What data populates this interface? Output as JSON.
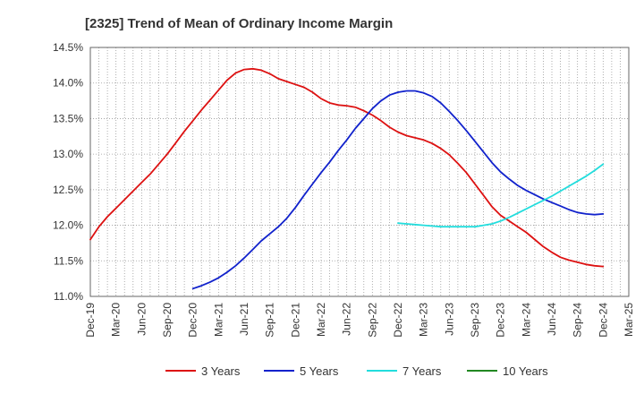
{
  "chart_data": {
    "type": "line",
    "title": "[2325]  Trend of Mean of Ordinary Income Margin",
    "xlabel": "",
    "ylabel": "",
    "x_ticks": [
      "Dec-19",
      "Mar-20",
      "Jun-20",
      "Sep-20",
      "Dec-20",
      "Mar-21",
      "Jun-21",
      "Sep-21",
      "Dec-21",
      "Mar-22",
      "Jun-22",
      "Sep-22",
      "Dec-22",
      "Mar-23",
      "Jun-23",
      "Sep-23",
      "Dec-23",
      "Mar-24",
      "Jun-24",
      "Sep-24",
      "Dec-24",
      "Mar-25"
    ],
    "y_ticks": [
      "11.0%",
      "11.5%",
      "12.0%",
      "12.5%",
      "13.0%",
      "13.5%",
      "14.0%",
      "14.5%"
    ],
    "ylim": [
      11.0,
      14.5
    ],
    "grid": true,
    "legend_position": "bottom",
    "series": [
      {
        "name": "3 Years",
        "color": "#dd1111",
        "points": [
          [
            "Dec-19",
            11.8
          ],
          [
            "Jan-20",
            11.98
          ],
          [
            "Feb-20",
            12.12
          ],
          [
            "Mar-20",
            12.24
          ],
          [
            "Apr-20",
            12.36
          ],
          [
            "May-20",
            12.48
          ],
          [
            "Jun-20",
            12.6
          ],
          [
            "Jul-20",
            12.72
          ],
          [
            "Aug-20",
            12.86
          ],
          [
            "Sep-20",
            13.0
          ],
          [
            "Oct-20",
            13.16
          ],
          [
            "Nov-20",
            13.32
          ],
          [
            "Dec-20",
            13.47
          ],
          [
            "Jan-21",
            13.62
          ],
          [
            "Feb-21",
            13.76
          ],
          [
            "Mar-21",
            13.9
          ],
          [
            "Apr-21",
            14.04
          ],
          [
            "May-21",
            14.14
          ],
          [
            "Jun-21",
            14.19
          ],
          [
            "Jul-21",
            14.2
          ],
          [
            "Aug-21",
            14.18
          ],
          [
            "Sep-21",
            14.13
          ],
          [
            "Oct-21",
            14.06
          ],
          [
            "Nov-21",
            14.02
          ],
          [
            "Dec-21",
            13.98
          ],
          [
            "Jan-22",
            13.94
          ],
          [
            "Feb-22",
            13.87
          ],
          [
            "Mar-22",
            13.78
          ],
          [
            "Apr-22",
            13.72
          ],
          [
            "May-22",
            13.69
          ],
          [
            "Jun-22",
            13.68
          ],
          [
            "Jul-22",
            13.66
          ],
          [
            "Aug-22",
            13.61
          ],
          [
            "Sep-22",
            13.55
          ],
          [
            "Oct-22",
            13.47
          ],
          [
            "Nov-22",
            13.38
          ],
          [
            "Dec-22",
            13.31
          ],
          [
            "Jan-23",
            13.26
          ],
          [
            "Feb-23",
            13.23
          ],
          [
            "Mar-23",
            13.2
          ],
          [
            "Apr-23",
            13.15
          ],
          [
            "May-23",
            13.08
          ],
          [
            "Jun-23",
            12.99
          ],
          [
            "Jul-23",
            12.87
          ],
          [
            "Aug-23",
            12.74
          ],
          [
            "Sep-23",
            12.58
          ],
          [
            "Oct-23",
            12.42
          ],
          [
            "Nov-23",
            12.26
          ],
          [
            "Dec-23",
            12.14
          ],
          [
            "Jan-24",
            12.06
          ],
          [
            "Feb-24",
            11.98
          ],
          [
            "Mar-24",
            11.9
          ],
          [
            "Apr-24",
            11.8
          ],
          [
            "May-24",
            11.7
          ],
          [
            "Jun-24",
            11.62
          ],
          [
            "Jul-24",
            11.55
          ],
          [
            "Aug-24",
            11.51
          ],
          [
            "Sep-24",
            11.48
          ],
          [
            "Oct-24",
            11.45
          ],
          [
            "Nov-24",
            11.43
          ],
          [
            "Dec-24",
            11.42
          ]
        ]
      },
      {
        "name": "5 Years",
        "color": "#1122cc",
        "points": [
          [
            "Dec-20",
            11.11
          ],
          [
            "Jan-21",
            11.15
          ],
          [
            "Feb-21",
            11.2
          ],
          [
            "Mar-21",
            11.26
          ],
          [
            "Apr-21",
            11.34
          ],
          [
            "May-21",
            11.43
          ],
          [
            "Jun-21",
            11.54
          ],
          [
            "Jul-21",
            11.66
          ],
          [
            "Aug-21",
            11.78
          ],
          [
            "Sep-21",
            11.88
          ],
          [
            "Oct-21",
            11.98
          ],
          [
            "Nov-21",
            12.1
          ],
          [
            "Dec-21",
            12.25
          ],
          [
            "Jan-22",
            12.42
          ],
          [
            "Feb-22",
            12.58
          ],
          [
            "Mar-22",
            12.74
          ],
          [
            "Apr-22",
            12.89
          ],
          [
            "May-22",
            13.05
          ],
          [
            "Jun-22",
            13.2
          ],
          [
            "Jul-22",
            13.36
          ],
          [
            "Aug-22",
            13.5
          ],
          [
            "Sep-22",
            13.64
          ],
          [
            "Oct-22",
            13.75
          ],
          [
            "Nov-22",
            13.83
          ],
          [
            "Dec-22",
            13.87
          ],
          [
            "Jan-23",
            13.89
          ],
          [
            "Feb-23",
            13.89
          ],
          [
            "Mar-23",
            13.86
          ],
          [
            "Apr-23",
            13.81
          ],
          [
            "May-23",
            13.72
          ],
          [
            "Jun-23",
            13.6
          ],
          [
            "Jul-23",
            13.47
          ],
          [
            "Aug-23",
            13.33
          ],
          [
            "Sep-23",
            13.18
          ],
          [
            "Oct-23",
            13.03
          ],
          [
            "Nov-23",
            12.88
          ],
          [
            "Dec-23",
            12.75
          ],
          [
            "Jan-24",
            12.65
          ],
          [
            "Feb-24",
            12.56
          ],
          [
            "Mar-24",
            12.49
          ],
          [
            "Apr-24",
            12.43
          ],
          [
            "May-24",
            12.37
          ],
          [
            "Jun-24",
            12.32
          ],
          [
            "Jul-24",
            12.27
          ],
          [
            "Aug-24",
            12.22
          ],
          [
            "Sep-24",
            12.18
          ],
          [
            "Oct-24",
            12.16
          ],
          [
            "Nov-24",
            12.15
          ],
          [
            "Dec-24",
            12.16
          ]
        ]
      },
      {
        "name": "7 Years",
        "color": "#22dddd",
        "points": [
          [
            "Dec-22",
            12.03
          ],
          [
            "Jan-23",
            12.02
          ],
          [
            "Feb-23",
            12.01
          ],
          [
            "Mar-23",
            12.0
          ],
          [
            "Apr-23",
            11.99
          ],
          [
            "May-23",
            11.98
          ],
          [
            "Jun-23",
            11.98
          ],
          [
            "Jul-23",
            11.98
          ],
          [
            "Aug-23",
            11.98
          ],
          [
            "Sep-23",
            11.98
          ],
          [
            "Oct-23",
            12.0
          ],
          [
            "Nov-23",
            12.02
          ],
          [
            "Dec-23",
            12.06
          ],
          [
            "Jan-24",
            12.11
          ],
          [
            "Feb-24",
            12.17
          ],
          [
            "Mar-24",
            12.23
          ],
          [
            "Apr-24",
            12.29
          ],
          [
            "May-24",
            12.35
          ],
          [
            "Jun-24",
            12.41
          ],
          [
            "Jul-24",
            12.48
          ],
          [
            "Aug-24",
            12.55
          ],
          [
            "Sep-24",
            12.62
          ],
          [
            "Oct-24",
            12.69
          ],
          [
            "Nov-24",
            12.77
          ],
          [
            "Dec-24",
            12.86
          ]
        ]
      },
      {
        "name": "10 Years",
        "color": "#228822",
        "points": []
      }
    ]
  }
}
